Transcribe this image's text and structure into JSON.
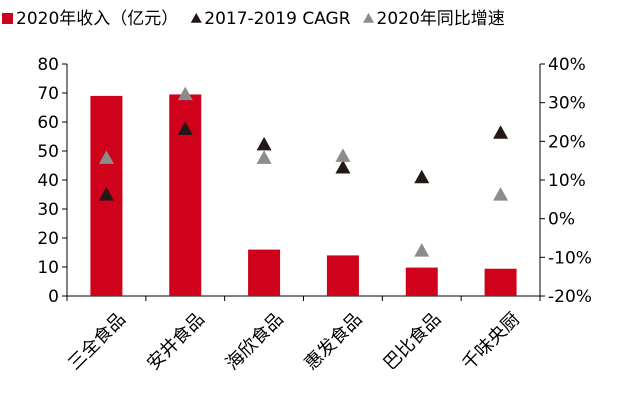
{
  "chart_data": {
    "type": "bar",
    "categories": [
      "三全食品",
      "安井食品",
      "海欣食品",
      "惠发食品",
      "巴比食品",
      "千味央厨"
    ],
    "series": [
      {
        "name": "2020年收入（亿元）",
        "kind": "bar",
        "axis": "left",
        "color": "#d0021b",
        "values": [
          69,
          69.5,
          16,
          14,
          9.8,
          9.4
        ]
      },
      {
        "name": "2017-2019 CAGR",
        "kind": "marker",
        "axis": "right",
        "color": "#231815",
        "values": [
          0.06,
          0.23,
          0.19,
          0.13,
          0.105,
          0.22
        ]
      },
      {
        "name": "2020年同比增速",
        "kind": "marker",
        "axis": "right",
        "color": "#8c8c8c",
        "values": [
          0.155,
          0.32,
          0.155,
          0.16,
          -0.085,
          0.06
        ]
      }
    ],
    "y_left": {
      "min": 0,
      "max": 80,
      "step": 10,
      "ticks": [
        "0",
        "10",
        "20",
        "30",
        "40",
        "50",
        "60",
        "70",
        "80"
      ]
    },
    "y_right": {
      "min": -0.2,
      "max": 0.4,
      "step": 0.1,
      "ticks": [
        "-20%",
        "-10%",
        "0%",
        "10%",
        "20%",
        "30%",
        "40%"
      ]
    },
    "grid": false,
    "legend_position": "top"
  }
}
